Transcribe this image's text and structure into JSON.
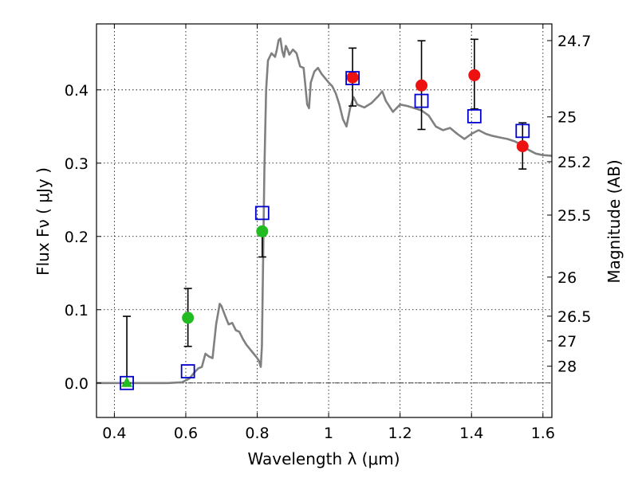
{
  "chart_data": {
    "type": "scatter",
    "xlabel": "Wavelength  λ (μm)",
    "ylabel": "Flux  Fν  ( μJy )",
    "y2label": "Magnitude (AB)",
    "xlim": [
      0.35,
      1.625
    ],
    "ylim": [
      -0.047,
      0.49
    ],
    "grid": true,
    "x_ticks": [
      0.4,
      0.6,
      0.8,
      1.0,
      1.2,
      1.4,
      1.6
    ],
    "x_tick_labels": [
      "0.4",
      "0.6",
      "0.8",
      "1",
      "1.2",
      "1.4",
      "1.6"
    ],
    "y_ticks": [
      0.0,
      0.1,
      0.2,
      0.3,
      0.4
    ],
    "y_tick_labels": [
      "0.0",
      "0.1",
      "0.2",
      "0.3",
      "0.4"
    ],
    "mag_ticks": [
      {
        "label": "24.7",
        "flux": 0.4672
      },
      {
        "label": "25",
        "flux": 0.3631
      },
      {
        "label": "25.2",
        "flux": 0.302
      },
      {
        "label": "25.5",
        "flux": 0.2291
      },
      {
        "label": "26",
        "flux": 0.1445
      },
      {
        "label": "26.5",
        "flux": 0.0912
      },
      {
        "label": "27",
        "flux": 0.0575
      },
      {
        "label": "28",
        "flux": 0.0229
      }
    ],
    "series": [
      {
        "kind": "line",
        "color": "#808080",
        "points": [
          [
            0.35,
            0.0
          ],
          [
            0.55,
            0.0
          ],
          [
            0.59,
            0.001
          ],
          [
            0.61,
            0.006
          ],
          [
            0.625,
            0.015
          ],
          [
            0.635,
            0.02
          ],
          [
            0.645,
            0.022
          ],
          [
            0.655,
            0.04
          ],
          [
            0.665,
            0.036
          ],
          [
            0.675,
            0.034
          ],
          [
            0.685,
            0.08
          ],
          [
            0.695,
            0.108
          ],
          [
            0.7,
            0.105
          ],
          [
            0.71,
            0.092
          ],
          [
            0.72,
            0.08
          ],
          [
            0.73,
            0.082
          ],
          [
            0.74,
            0.072
          ],
          [
            0.75,
            0.07
          ],
          [
            0.76,
            0.06
          ],
          [
            0.77,
            0.052
          ],
          [
            0.78,
            0.046
          ],
          [
            0.79,
            0.04
          ],
          [
            0.8,
            0.034
          ],
          [
            0.805,
            0.03
          ],
          [
            0.81,
            0.022
          ],
          [
            0.813,
            0.05
          ],
          [
            0.816,
            0.15
          ],
          [
            0.82,
            0.29
          ],
          [
            0.825,
            0.4
          ],
          [
            0.83,
            0.44
          ],
          [
            0.84,
            0.45
          ],
          [
            0.85,
            0.445
          ],
          [
            0.855,
            0.455
          ],
          [
            0.86,
            0.468
          ],
          [
            0.865,
            0.47
          ],
          [
            0.87,
            0.453
          ],
          [
            0.875,
            0.445
          ],
          [
            0.88,
            0.46
          ],
          [
            0.885,
            0.455
          ],
          [
            0.89,
            0.448
          ],
          [
            0.9,
            0.455
          ],
          [
            0.91,
            0.45
          ],
          [
            0.92,
            0.432
          ],
          [
            0.93,
            0.43
          ],
          [
            0.935,
            0.405
          ],
          [
            0.94,
            0.38
          ],
          [
            0.945,
            0.375
          ],
          [
            0.95,
            0.41
          ],
          [
            0.96,
            0.425
          ],
          [
            0.97,
            0.43
          ],
          [
            0.98,
            0.422
          ],
          [
            0.99,
            0.416
          ],
          [
            1.0,
            0.41
          ],
          [
            1.01,
            0.405
          ],
          [
            1.02,
            0.395
          ],
          [
            1.03,
            0.38
          ],
          [
            1.04,
            0.36
          ],
          [
            1.05,
            0.35
          ],
          [
            1.06,
            0.375
          ],
          [
            1.07,
            0.39
          ],
          [
            1.08,
            0.38
          ],
          [
            1.1,
            0.376
          ],
          [
            1.12,
            0.382
          ],
          [
            1.14,
            0.392
          ],
          [
            1.15,
            0.398
          ],
          [
            1.16,
            0.385
          ],
          [
            1.18,
            0.37
          ],
          [
            1.2,
            0.38
          ],
          [
            1.22,
            0.378
          ],
          [
            1.24,
            0.375
          ],
          [
            1.26,
            0.372
          ],
          [
            1.28,
            0.365
          ],
          [
            1.3,
            0.35
          ],
          [
            1.32,
            0.345
          ],
          [
            1.34,
            0.348
          ],
          [
            1.36,
            0.34
          ],
          [
            1.38,
            0.333
          ],
          [
            1.4,
            0.34
          ],
          [
            1.42,
            0.345
          ],
          [
            1.44,
            0.34
          ],
          [
            1.46,
            0.337
          ],
          [
            1.48,
            0.335
          ],
          [
            1.5,
            0.333
          ],
          [
            1.52,
            0.33
          ],
          [
            1.54,
            0.325
          ],
          [
            1.56,
            0.318
          ],
          [
            1.58,
            0.313
          ],
          [
            1.6,
            0.311
          ],
          [
            1.625,
            0.31
          ]
        ]
      },
      {
        "kind": "errorbar",
        "color": "#000000",
        "points": [
          {
            "x": 0.435,
            "low": 0.0,
            "high": 0.091
          },
          {
            "x": 0.606,
            "low": 0.05,
            "high": 0.129
          },
          {
            "x": 0.814,
            "low": 0.172,
            "high": 0.207
          },
          {
            "x": 1.067,
            "low": 0.378,
            "high": 0.457
          },
          {
            "x": 1.26,
            "low": 0.346,
            "high": 0.467
          },
          {
            "x": 1.408,
            "low": 0.374,
            "high": 0.469
          },
          {
            "x": 1.543,
            "low": 0.292,
            "high": 0.355
          }
        ]
      },
      {
        "kind": "markers",
        "marker": "circle",
        "color": "#22bb22",
        "points": [
          [
            0.606,
            0.089
          ],
          [
            0.814,
            0.207
          ]
        ]
      },
      {
        "kind": "markers",
        "marker": "triangle",
        "color": "#22bb22",
        "points": [
          [
            0.435,
            0.0
          ]
        ]
      },
      {
        "kind": "markers",
        "marker": "circle",
        "color": "#ee1111",
        "points": [
          [
            1.067,
            0.417
          ],
          [
            1.26,
            0.406
          ],
          [
            1.408,
            0.42
          ],
          [
            1.543,
            0.323
          ]
        ]
      },
      {
        "kind": "markers",
        "marker": "open-square",
        "color": "#0000cc",
        "points": [
          [
            0.435,
            0.0
          ],
          [
            0.606,
            0.016
          ],
          [
            0.814,
            0.232
          ],
          [
            1.067,
            0.416
          ],
          [
            1.26,
            0.385
          ],
          [
            1.408,
            0.364
          ],
          [
            1.543,
            0.344
          ]
        ]
      }
    ]
  }
}
